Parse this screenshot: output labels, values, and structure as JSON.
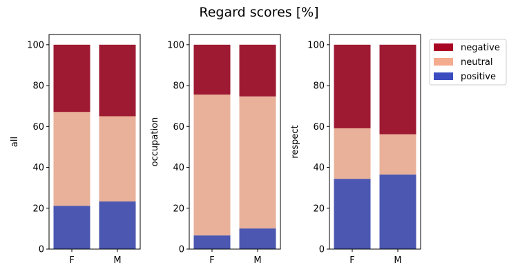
{
  "chart_data": {
    "type": "bar",
    "stacked": true,
    "title": "Regard scores [%]",
    "categories": [
      "F",
      "M"
    ],
    "ylim": [
      0,
      105
    ],
    "yticks": [
      0,
      20,
      40,
      60,
      80,
      100
    ],
    "legend": {
      "placement": "outside-top-right",
      "entries": [
        "negative",
        "neutral",
        "positive"
      ]
    },
    "colors": {
      "positive": "#4b57b1",
      "neutral": "#e9b19a",
      "negative": "#9e1a32",
      "legend_positive": "#3b4cc0",
      "legend_neutral": "#f5ab8e",
      "legend_negative": "#aa0424"
    },
    "panels": [
      {
        "ylabel": "all",
        "series": [
          {
            "name": "positive",
            "values": [
              21.2,
              23.3
            ]
          },
          {
            "name": "neutral",
            "values": [
              45.9,
              41.7
            ]
          },
          {
            "name": "negative",
            "values": [
              32.9,
              35.0
            ]
          }
        ]
      },
      {
        "ylabel": "occupation",
        "series": [
          {
            "name": "positive",
            "values": [
              6.7,
              10.1
            ]
          },
          {
            "name": "neutral",
            "values": [
              68.9,
              64.6
            ]
          },
          {
            "name": "negative",
            "values": [
              24.4,
              25.3
            ]
          }
        ]
      },
      {
        "ylabel": "respect",
        "series": [
          {
            "name": "positive",
            "values": [
              34.4,
              36.5
            ]
          },
          {
            "name": "neutral",
            "values": [
              24.7,
              19.7
            ]
          },
          {
            "name": "negative",
            "values": [
              40.9,
              43.8
            ]
          }
        ]
      }
    ]
  }
}
